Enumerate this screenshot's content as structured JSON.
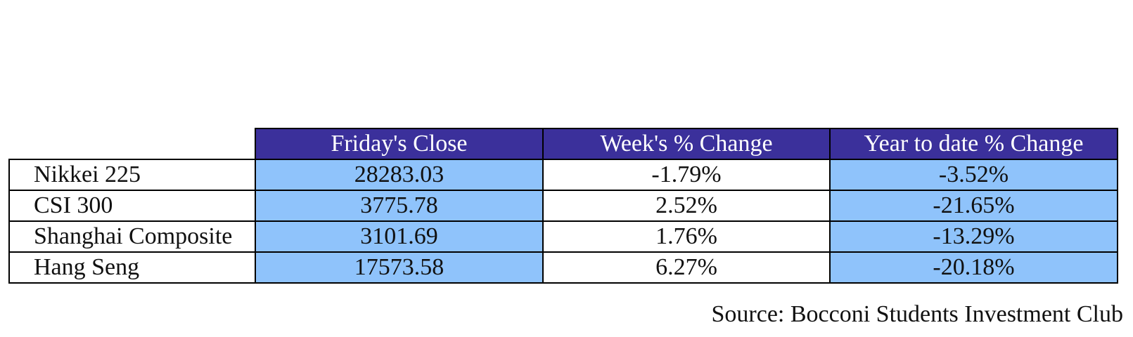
{
  "colors": {
    "header_bg": "#3b309b",
    "header_text": "#ffffff",
    "highlight_col_bg": "#8fc3fb",
    "plain_col_bg": "#ffffff",
    "border": "#000000"
  },
  "chart_data": {
    "type": "table",
    "columns": [
      "Friday's Close",
      "Week's % Change",
      "Year to date % Change"
    ],
    "rows": [
      {
        "label": "Nikkei 225",
        "values": [
          "28283.03",
          "-1.79%",
          "-3.52%"
        ]
      },
      {
        "label": "CSI 300",
        "values": [
          "3775.78",
          "2.52%",
          "-21.65%"
        ]
      },
      {
        "label": "Shanghai Composite",
        "values": [
          "3101.69",
          "1.76%",
          "-13.29%"
        ]
      },
      {
        "label": "Hang Seng",
        "values": [
          "17573.58",
          "6.27%",
          "-20.18%"
        ]
      }
    ],
    "column_shading": [
      "highlight",
      "plain",
      "highlight"
    ],
    "source": "Source: Bocconi Students Investment Club"
  }
}
